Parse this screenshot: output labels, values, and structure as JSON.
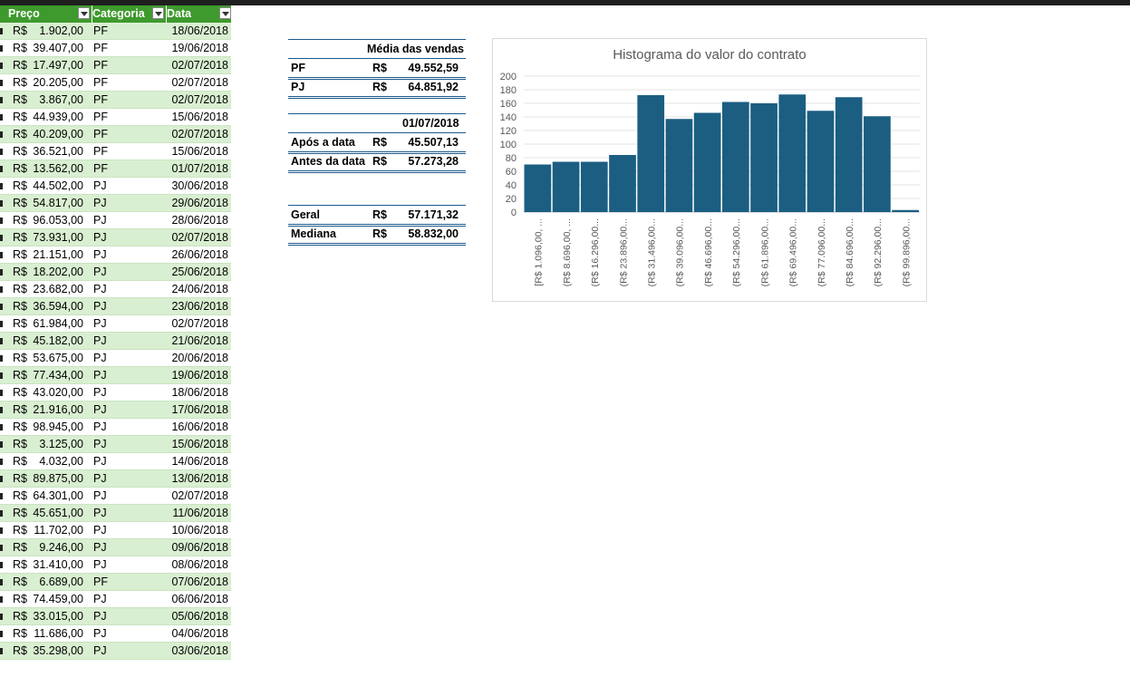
{
  "table": {
    "headers": [
      "Preço",
      "Categoria",
      "Data"
    ],
    "rows": [
      {
        "cur": "R$",
        "price": "1.902,00",
        "cat": "PF",
        "date": "18/06/2018"
      },
      {
        "cur": "R$",
        "price": "39.407,00",
        "cat": "PF",
        "date": "19/06/2018"
      },
      {
        "cur": "R$",
        "price": "17.497,00",
        "cat": "PF",
        "date": "02/07/2018"
      },
      {
        "cur": "R$",
        "price": "20.205,00",
        "cat": "PF",
        "date": "02/07/2018"
      },
      {
        "cur": "R$",
        "price": "3.867,00",
        "cat": "PF",
        "date": "02/07/2018"
      },
      {
        "cur": "R$",
        "price": "44.939,00",
        "cat": "PF",
        "date": "15/06/2018"
      },
      {
        "cur": "R$",
        "price": "40.209,00",
        "cat": "PF",
        "date": "02/07/2018"
      },
      {
        "cur": "R$",
        "price": "36.521,00",
        "cat": "PF",
        "date": "15/06/2018"
      },
      {
        "cur": "R$",
        "price": "13.562,00",
        "cat": "PF",
        "date": "01/07/2018"
      },
      {
        "cur": "R$",
        "price": "44.502,00",
        "cat": "PJ",
        "date": "30/06/2018"
      },
      {
        "cur": "R$",
        "price": "54.817,00",
        "cat": "PJ",
        "date": "29/06/2018"
      },
      {
        "cur": "R$",
        "price": "96.053,00",
        "cat": "PJ",
        "date": "28/06/2018"
      },
      {
        "cur": "R$",
        "price": "73.931,00",
        "cat": "PJ",
        "date": "02/07/2018"
      },
      {
        "cur": "R$",
        "price": "21.151,00",
        "cat": "PJ",
        "date": "26/06/2018"
      },
      {
        "cur": "R$",
        "price": "18.202,00",
        "cat": "PJ",
        "date": "25/06/2018"
      },
      {
        "cur": "R$",
        "price": "23.682,00",
        "cat": "PJ",
        "date": "24/06/2018"
      },
      {
        "cur": "R$",
        "price": "36.594,00",
        "cat": "PJ",
        "date": "23/06/2018"
      },
      {
        "cur": "R$",
        "price": "61.984,00",
        "cat": "PJ",
        "date": "02/07/2018"
      },
      {
        "cur": "R$",
        "price": "45.182,00",
        "cat": "PJ",
        "date": "21/06/2018"
      },
      {
        "cur": "R$",
        "price": "53.675,00",
        "cat": "PJ",
        "date": "20/06/2018"
      },
      {
        "cur": "R$",
        "price": "77.434,00",
        "cat": "PJ",
        "date": "19/06/2018"
      },
      {
        "cur": "R$",
        "price": "43.020,00",
        "cat": "PJ",
        "date": "18/06/2018"
      },
      {
        "cur": "R$",
        "price": "21.916,00",
        "cat": "PJ",
        "date": "17/06/2018"
      },
      {
        "cur": "R$",
        "price": "98.945,00",
        "cat": "PJ",
        "date": "16/06/2018"
      },
      {
        "cur": "R$",
        "price": "3.125,00",
        "cat": "PJ",
        "date": "15/06/2018"
      },
      {
        "cur": "R$",
        "price": "4.032,00",
        "cat": "PJ",
        "date": "14/06/2018"
      },
      {
        "cur": "R$",
        "price": "89.875,00",
        "cat": "PJ",
        "date": "13/06/2018"
      },
      {
        "cur": "R$",
        "price": "64.301,00",
        "cat": "PJ",
        "date": "02/07/2018"
      },
      {
        "cur": "R$",
        "price": "45.651,00",
        "cat": "PJ",
        "date": "11/06/2018"
      },
      {
        "cur": "R$",
        "price": "11.702,00",
        "cat": "PJ",
        "date": "10/06/2018"
      },
      {
        "cur": "R$",
        "price": "9.246,00",
        "cat": "PJ",
        "date": "09/06/2018"
      },
      {
        "cur": "R$",
        "price": "31.410,00",
        "cat": "PJ",
        "date": "08/06/2018"
      },
      {
        "cur": "R$",
        "price": "6.689,00",
        "cat": "PF",
        "date": "07/06/2018"
      },
      {
        "cur": "R$",
        "price": "74.459,00",
        "cat": "PJ",
        "date": "06/06/2018"
      },
      {
        "cur": "R$",
        "price": "33.015,00",
        "cat": "PJ",
        "date": "05/06/2018"
      },
      {
        "cur": "R$",
        "price": "11.686,00",
        "cat": "PJ",
        "date": "04/06/2018"
      },
      {
        "cur": "R$",
        "price": "35.298,00",
        "cat": "PJ",
        "date": "03/06/2018"
      }
    ]
  },
  "summary": {
    "media_header": "Média das vendas",
    "pf_label": "PF",
    "pf_cur": "R$",
    "pf_value": "49.552,59",
    "pj_label": "PJ",
    "pj_cur": "R$",
    "pj_value": "64.851,92",
    "date_header": "01/07/2018",
    "apos_label": "Após a data",
    "apos_cur": "R$",
    "apos_value": "45.507,13",
    "antes_label": "Antes da data",
    "antes_cur": "R$",
    "antes_value": "57.273,28",
    "geral_label": "Geral",
    "geral_cur": "R$",
    "geral_value": "57.171,32",
    "mediana_label": "Mediana",
    "mediana_cur": "R$",
    "mediana_value": "58.832,00"
  },
  "chart_data": {
    "type": "bar",
    "title": "Histograma do valor do contrato",
    "categories": [
      "[R$ 1.096,00, ...",
      "(R$ 8.696,00, ...",
      "(R$ 16.296,00...",
      "(R$ 23.896,00...",
      "(R$ 31.496,00...",
      "(R$ 39.096,00...",
      "(R$ 46.696,00...",
      "(R$ 54.296,00...",
      "(R$ 61.896,00...",
      "(R$ 69.496,00...",
      "(R$ 77.096,00...",
      "(R$ 84.696,00...",
      "(R$ 92.296,00...",
      "(R$ 99.896,00..."
    ],
    "values": [
      70,
      74,
      74,
      84,
      172,
      137,
      146,
      162,
      160,
      173,
      149,
      169,
      141,
      3
    ],
    "yticks": [
      0,
      20,
      40,
      60,
      80,
      100,
      120,
      140,
      160,
      180,
      200
    ],
    "ylim": [
      0,
      200
    ],
    "grid": true,
    "color": "#1b5e82"
  }
}
